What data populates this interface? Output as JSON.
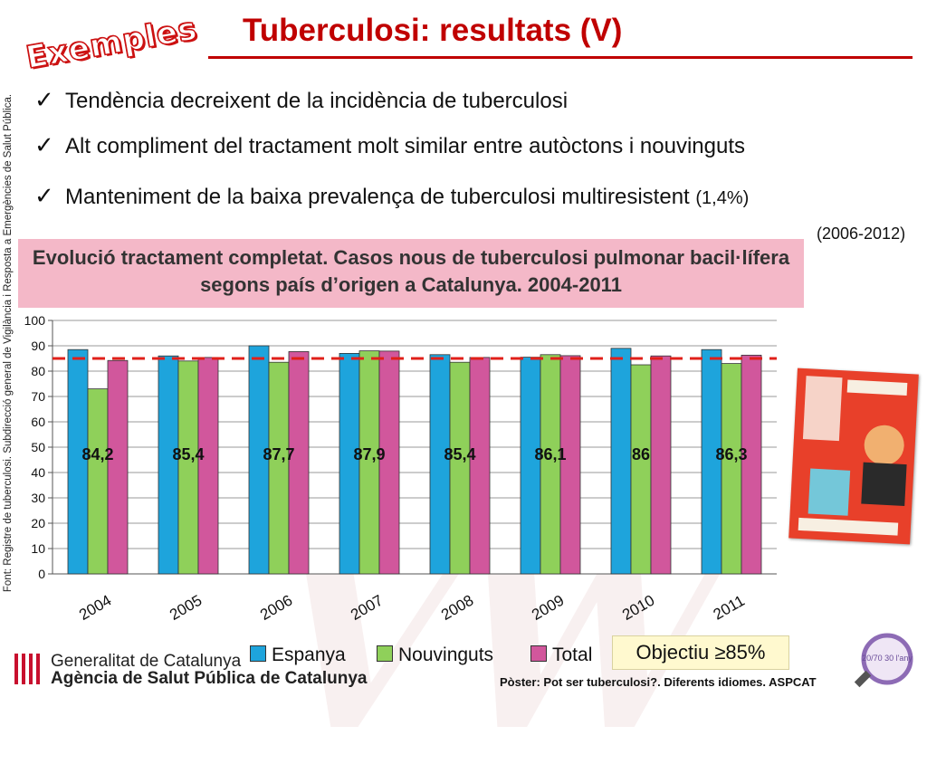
{
  "stamp_label": "Exemples",
  "slide_title": "Tuberculosi: resultats (V)",
  "side_source": "Font: Registre de tuberculosi. Subdirecció general de Vigilància i Resposta a Emergències de Salut Pública.",
  "bullets": [
    {
      "text": "Tendència decreixent de la incidència de tuberculosi",
      "note": ""
    },
    {
      "text": "Alt compliment del tractament molt similar entre autòctons i nouvinguts",
      "note": ""
    },
    {
      "text": "Manteniment de la baixa prevalença de tuberculosi multiresistent",
      "note": "(1,4%)"
    }
  ],
  "check_symbol": "✓",
  "period_note": "(2006-2012)",
  "chart_heading": "Evolució tractament completat. Casos nous de tuberculosi pulmonar bacil·lífera segons país d’origen a Catalunya. 2004-2011",
  "objective_label": "Objectiu ≥85%",
  "footer": {
    "org_line1": "Generalitat de Catalunya",
    "org_line2": "Agència de Salut Pública de Catalunya",
    "poster_note": "Pòster: Pot ser tuberculosi?. Diferents idiomes. ASPCAT",
    "badge_text": "20/70 30 l'any"
  },
  "colors": {
    "espanya": "#1ea4dc",
    "nouvinguts": "#8fd05a",
    "total": "#d1579c",
    "objective_line": "#e0201a",
    "title_red": "#c00000"
  },
  "chart_data": {
    "type": "bar",
    "title": "",
    "xlabel": "",
    "ylabel": "",
    "categories": [
      "2004",
      "2005",
      "2006",
      "2007",
      "2008",
      "2009",
      "2010",
      "2011"
    ],
    "series": [
      {
        "name": "Espanya",
        "values": [
          88.5,
          86,
          90,
          87,
          86.5,
          85.5,
          89,
          88.5
        ]
      },
      {
        "name": "Nouvinguts",
        "values": [
          73,
          84,
          83.5,
          88,
          83.5,
          86.5,
          82.5,
          83
        ]
      },
      {
        "name": "Total",
        "values": [
          84.2,
          85.4,
          87.7,
          87.9,
          85.4,
          86.1,
          86,
          86.3
        ]
      }
    ],
    "total_labels": [
      "84,2",
      "85,4",
      "87,7",
      "87,9",
      "85,4",
      "86,1",
      "86",
      "86,3"
    ],
    "objective_value": 85,
    "ylim": [
      0,
      100
    ],
    "yticks": [
      0,
      10,
      20,
      30,
      40,
      50,
      60,
      70,
      80,
      90,
      100
    ],
    "grid": true,
    "legend": "bottom"
  }
}
